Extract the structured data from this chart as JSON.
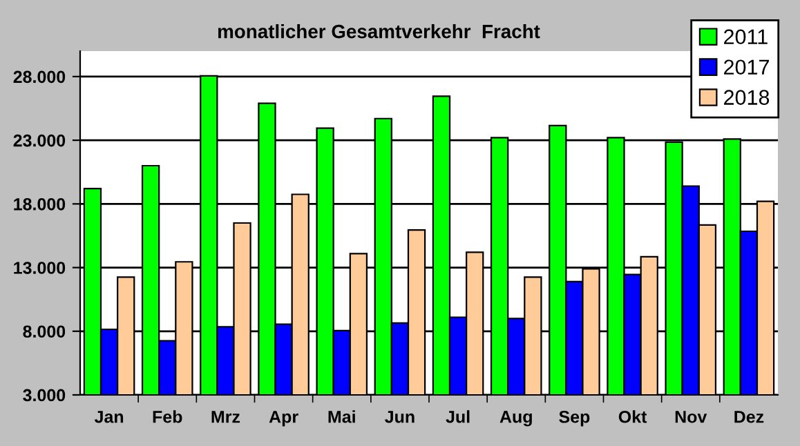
{
  "chart_data": {
    "type": "bar",
    "title": "monatlicher Gesamtverkehr  Fracht",
    "categories": [
      "Jan",
      "Feb",
      "Mrz",
      "Apr",
      "Mai",
      "Jun",
      "Jul",
      "Aug",
      "Sep",
      "Okt",
      "Nov",
      "Dez"
    ],
    "series": [
      {
        "name": "2011",
        "color": "#00ff00",
        "values": [
          19200,
          21000,
          28050,
          25900,
          23950,
          24700,
          26450,
          23200,
          24150,
          23200,
          22850,
          23100
        ]
      },
      {
        "name": "2017",
        "color": "#0000ff",
        "values": [
          8150,
          7250,
          8350,
          8550,
          8050,
          8650,
          9100,
          9000,
          11900,
          12450,
          19400,
          15850
        ]
      },
      {
        "name": "2018",
        "color": "#ffcc99",
        "values": [
          12250,
          13450,
          16500,
          18750,
          14100,
          15950,
          14200,
          12250,
          12900,
          13850,
          16350,
          18200
        ]
      }
    ],
    "ylim": [
      3000,
      30000
    ],
    "yticks": [
      {
        "value": 3000,
        "label": "3.000"
      },
      {
        "value": 8000,
        "label": "8.000"
      },
      {
        "value": 13000,
        "label": "13.000"
      },
      {
        "value": 18000,
        "label": "18.000"
      },
      {
        "value": 23000,
        "label": "23.000"
      },
      {
        "value": 28000,
        "label": "28.000"
      }
    ],
    "grid": "y",
    "legend": "top right"
  }
}
